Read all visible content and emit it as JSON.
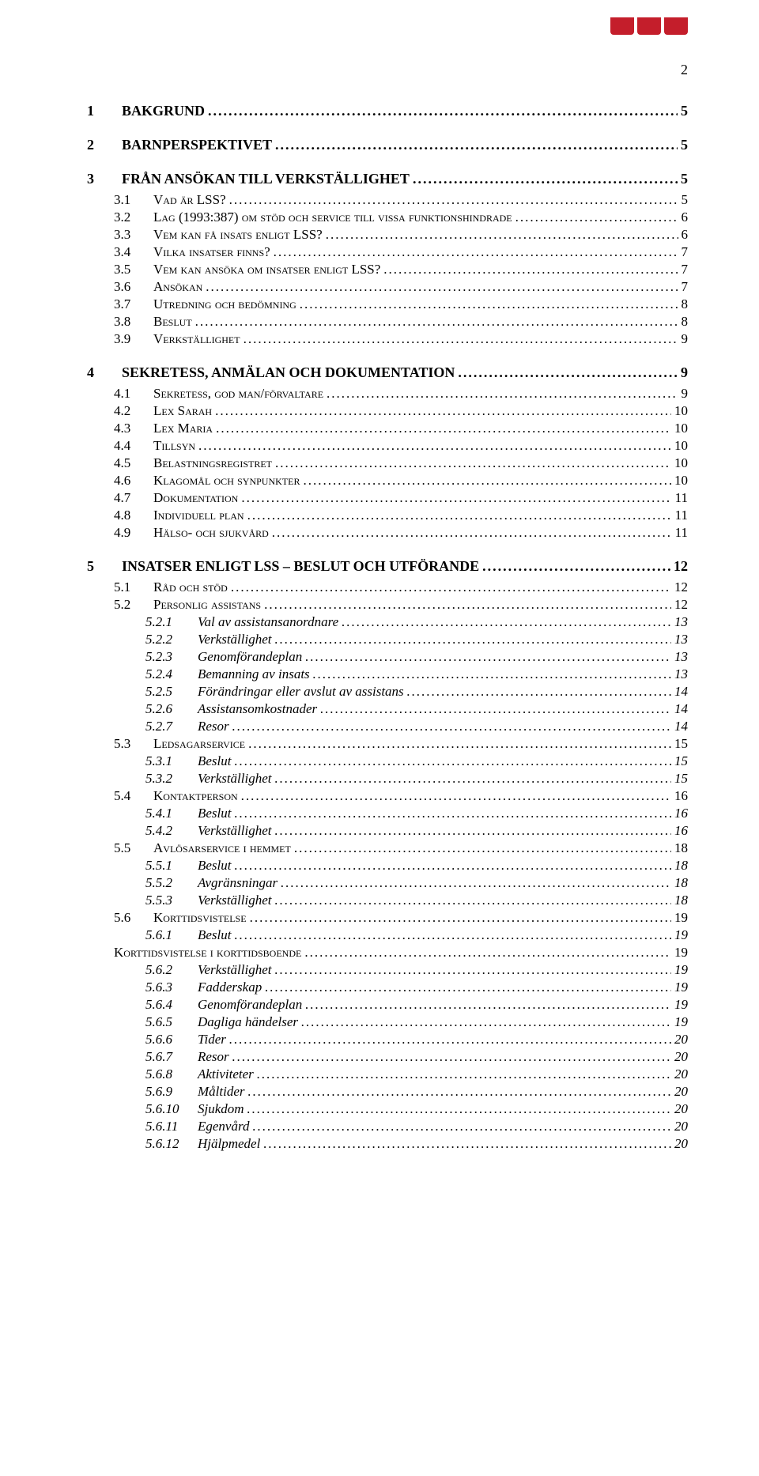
{
  "colors": {
    "tab": "#c41e2b",
    "text": "#000000",
    "bg": "#ffffff"
  },
  "dot_char": ".",
  "page_number": "2",
  "toc": [
    {
      "level": 1,
      "num": "1",
      "label": "BAKGRUND",
      "page": "5"
    },
    {
      "level": 1,
      "num": "2",
      "label": "BARNPERSPEKTIVET",
      "page": "5"
    },
    {
      "level": 1,
      "num": "3",
      "label": "FRÅN ANSÖKAN TILL VERKSTÄLLIGHET",
      "page": "5"
    },
    {
      "level": 2,
      "num": "3.1",
      "label": "Vad är LSS?",
      "page": "5"
    },
    {
      "level": 2,
      "num": "3.2",
      "label": "Lag (1993:387) om stöd och service till vissa funktionshindrade",
      "page": "6"
    },
    {
      "level": 2,
      "num": "3.3",
      "label": "Vem kan få insats enligt LSS?",
      "page": "6"
    },
    {
      "level": 2,
      "num": "3.4",
      "label": "Vilka insatser finns?",
      "page": "7"
    },
    {
      "level": 2,
      "num": "3.5",
      "label": "Vem kan ansöka om insatser enligt LSS?",
      "page": "7"
    },
    {
      "level": 2,
      "num": "3.6",
      "label": "Ansökan",
      "page": "7"
    },
    {
      "level": 2,
      "num": "3.7",
      "label": "Utredning och bedömning",
      "page": "8"
    },
    {
      "level": 2,
      "num": "3.8",
      "label": "Beslut",
      "page": "8"
    },
    {
      "level": 2,
      "num": "3.9",
      "label": "Verkställighet",
      "page": "9"
    },
    {
      "level": 1,
      "num": "4",
      "label": "SEKRETESS, ANMÄLAN OCH DOKUMENTATION",
      "page": "9"
    },
    {
      "level": 2,
      "num": "4.1",
      "label": "Sekretess, god man/förvaltare",
      "page": "9"
    },
    {
      "level": 2,
      "num": "4.2",
      "label": "Lex Sarah",
      "page": "10"
    },
    {
      "level": 2,
      "num": "4.3",
      "label": "Lex Maria",
      "page": "10"
    },
    {
      "level": 2,
      "num": "4.4",
      "label": "Tillsyn",
      "page": "10"
    },
    {
      "level": 2,
      "num": "4.5",
      "label": "Belastningsregistret",
      "page": "10"
    },
    {
      "level": 2,
      "num": "4.6",
      "label": "Klagomål och synpunkter",
      "page": "10"
    },
    {
      "level": 2,
      "num": "4.7",
      "label": "Dokumentation",
      "page": "11"
    },
    {
      "level": 2,
      "num": "4.8",
      "label": "Individuell plan",
      "page": "11"
    },
    {
      "level": 2,
      "num": "4.9",
      "label": "Hälso- och sjukvård",
      "page": "11"
    },
    {
      "level": 1,
      "num": "5",
      "label": "INSATSER ENLIGT LSS – BESLUT OCH UTFÖRANDE",
      "page": "12"
    },
    {
      "level": 2,
      "num": "5.1",
      "label": "Råd och stöd",
      "page": "12"
    },
    {
      "level": 2,
      "num": "5.2",
      "label": "Personlig assistans",
      "page": "12"
    },
    {
      "level": 3,
      "num": "5.2.1",
      "label": "Val av assistansanordnare",
      "page": "13"
    },
    {
      "level": 3,
      "num": "5.2.2",
      "label": "Verkställighet",
      "page": "13"
    },
    {
      "level": 3,
      "num": "5.2.3",
      "label": "Genomförandeplan",
      "page": "13"
    },
    {
      "level": 3,
      "num": "5.2.4",
      "label": "Bemanning av insats",
      "page": "13"
    },
    {
      "level": 3,
      "num": "5.2.5",
      "label": "Förändringar eller avslut av assistans",
      "page": "14"
    },
    {
      "level": 3,
      "num": "5.2.6",
      "label": "Assistansomkostnader",
      "page": "14"
    },
    {
      "level": 3,
      "num": "5.2.7",
      "label": "Resor",
      "page": "14"
    },
    {
      "level": 2,
      "num": "5.3",
      "label": "Ledsagarservice",
      "page": "15"
    },
    {
      "level": 3,
      "num": "5.3.1",
      "label": "Beslut",
      "page": "15"
    },
    {
      "level": 3,
      "num": "5.3.2",
      "label": "Verkställighet",
      "page": "15"
    },
    {
      "level": 2,
      "num": "5.4",
      "label": "Kontaktperson",
      "page": "16"
    },
    {
      "level": 3,
      "num": "5.4.1",
      "label": "Beslut",
      "page": "16"
    },
    {
      "level": 3,
      "num": "5.4.2",
      "label": "Verkställighet",
      "page": "16"
    },
    {
      "level": 2,
      "num": "5.5",
      "label": "Avlösarservice i hemmet",
      "page": "18"
    },
    {
      "level": 3,
      "num": "5.5.1",
      "label": "Beslut",
      "page": "18"
    },
    {
      "level": 3,
      "num": "5.5.2",
      "label": "Avgränsningar",
      "page": "18"
    },
    {
      "level": 3,
      "num": "5.5.3",
      "label": "Verkställighet",
      "page": "18"
    },
    {
      "level": 2,
      "num": "5.6",
      "label": "Korttidsvistelse",
      "page": "19"
    },
    {
      "level": 3,
      "num": "5.6.1",
      "label": "Beslut",
      "page": "19"
    },
    {
      "level": 2,
      "num": "",
      "label": "Korttidsvistelse i korttidsboende",
      "page": "19",
      "nonum": true
    },
    {
      "level": 3,
      "num": "5.6.2",
      "label": "Verkställighet",
      "page": "19"
    },
    {
      "level": 3,
      "num": "5.6.3",
      "label": "Fadderskap",
      "page": "19"
    },
    {
      "level": 3,
      "num": "5.6.4",
      "label": "Genomförandeplan",
      "page": "19"
    },
    {
      "level": 3,
      "num": "5.6.5",
      "label": "Dagliga händelser",
      "page": "19"
    },
    {
      "level": 3,
      "num": "5.6.6",
      "label": "Tider",
      "page": "20"
    },
    {
      "level": 3,
      "num": "5.6.7",
      "label": "Resor",
      "page": "20"
    },
    {
      "level": 3,
      "num": "5.6.8",
      "label": "Aktiviteter",
      "page": "20"
    },
    {
      "level": 3,
      "num": "5.6.9",
      "label": "Måltider",
      "page": "20"
    },
    {
      "level": 3,
      "num": "5.6.10",
      "label": "Sjukdom",
      "page": "20"
    },
    {
      "level": 3,
      "num": "5.6.11",
      "label": "Egenvård",
      "page": "20"
    },
    {
      "level": 3,
      "num": "5.6.12",
      "label": "Hjälpmedel",
      "page": "20"
    }
  ]
}
